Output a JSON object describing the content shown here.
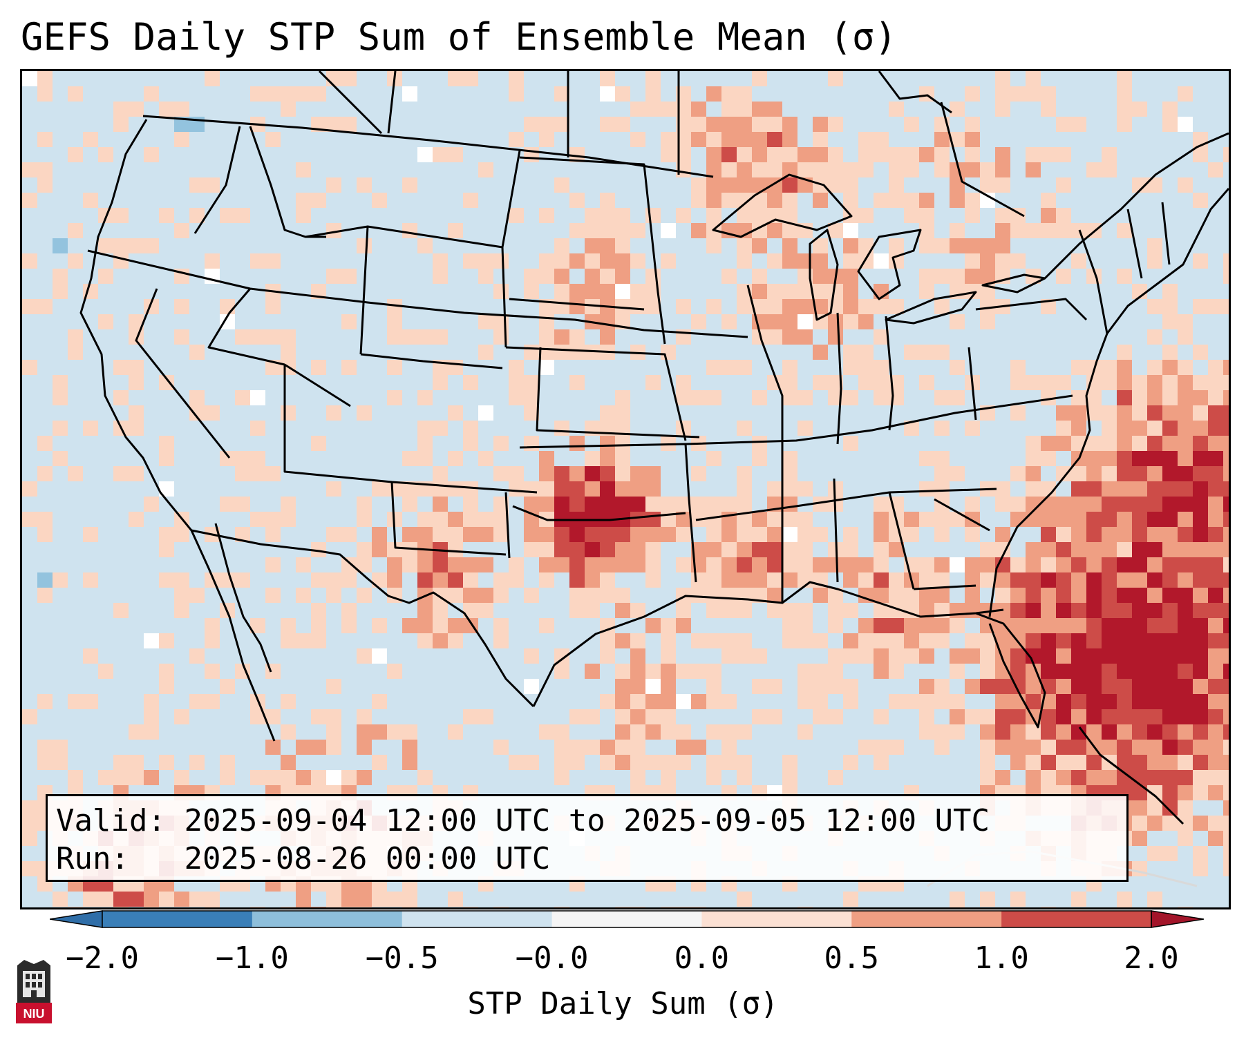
{
  "title": "GEFS Daily STP Sum of Ensemble Mean (σ)",
  "info": {
    "valid_label": "Valid:",
    "valid_value": "2025-09-04 12:00 UTC to 2025-09-05 12:00 UTC",
    "run_label": "Run:",
    "run_value": "2025-08-26 00:00 UTC"
  },
  "colorbar": {
    "label": "STP Daily Sum (σ)",
    "ticks": [
      "−2.0",
      "−1.0",
      "−0.5",
      "−0.0",
      "0.0",
      "0.5",
      "1.0",
      "2.0"
    ],
    "colors": [
      "#3a7fb8",
      "#8ebfdb",
      "#cfe3ef",
      "#f5f5f5",
      "#fbe0d3",
      "#ef9f83",
      "#cd4c48"
    ],
    "extend_low_color": "#2f6ea8",
    "extend_high_color": "#a3152a"
  },
  "map": {
    "background_color": "#cfe3ef",
    "level_colors": {
      "light": "#fbd6c2",
      "medium": "#ef9f83",
      "strong": "#cd4c48",
      "extreme": "#b2182b",
      "near_zero": "#ffffff",
      "negative": "#93c3de"
    }
  },
  "logo": {
    "text": "NIU"
  }
}
